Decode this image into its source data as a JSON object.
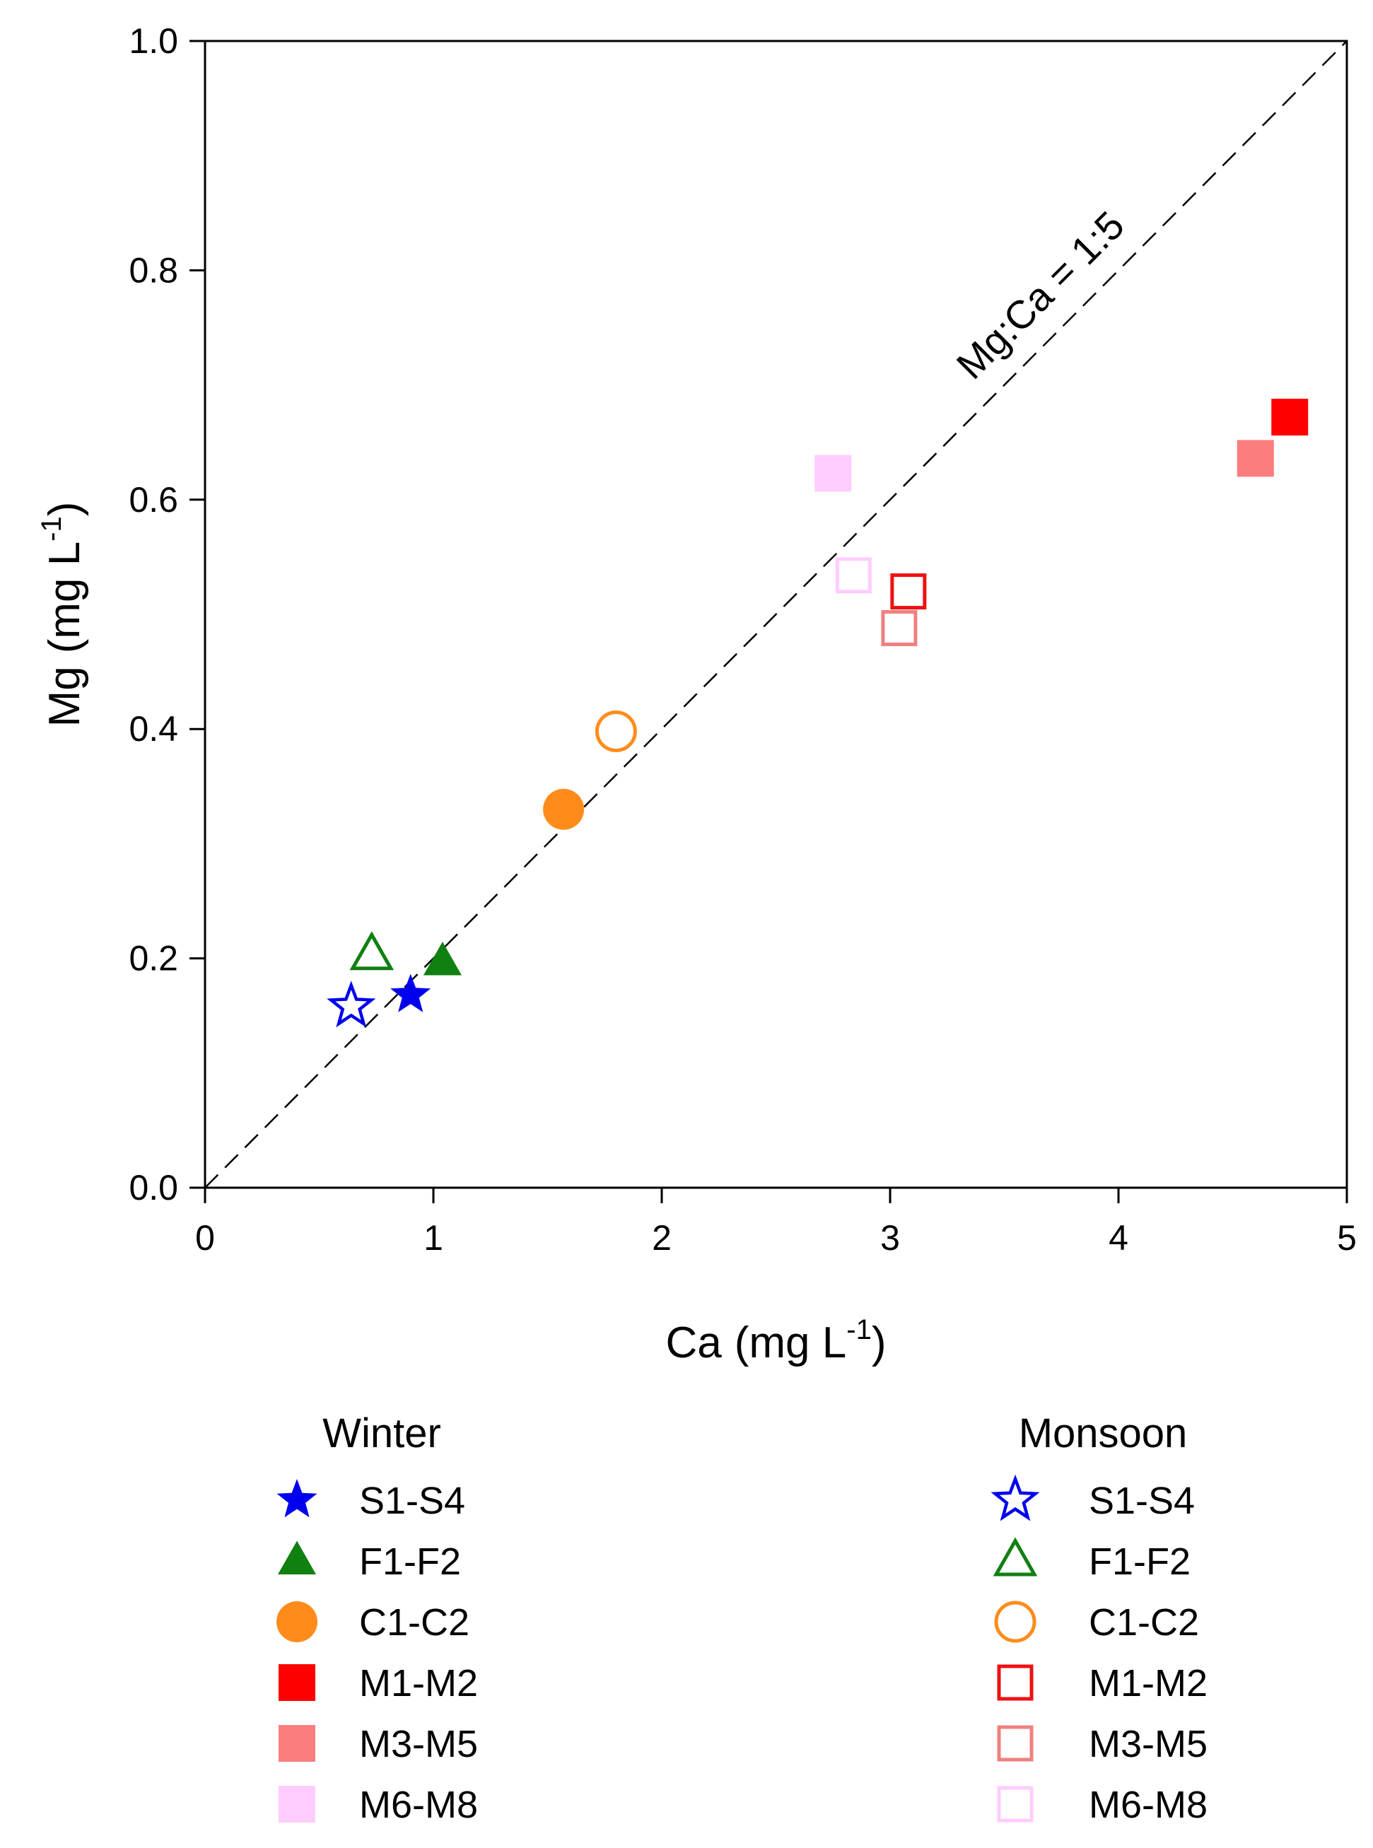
{
  "chart_data": {
    "type": "scatter",
    "title": "",
    "xlabel": {
      "base": "Ca",
      "unit": "(mg L",
      "sup": "-1",
      "close": ")"
    },
    "ylabel": {
      "base": "Mg",
      "unit": "(mg L",
      "sup": "-1",
      "close": ")"
    },
    "xlim": [
      0,
      5
    ],
    "ylim": [
      0,
      1.0
    ],
    "x_ticks": [
      0,
      1,
      2,
      3,
      4,
      5
    ],
    "x_tick_labels": [
      "0",
      "1",
      "2",
      "3",
      "4",
      "5"
    ],
    "y_ticks": [
      0,
      0.2,
      0.4,
      0.6,
      0.8,
      1.0
    ],
    "y_tick_labels": [
      "0.0",
      "0.2",
      "0.4",
      "0.6",
      "0.8",
      "1.0"
    ],
    "grid": false,
    "reference_line": {
      "label": "Mg:Ca = 1:5",
      "x": [
        0,
        5
      ],
      "y": [
        0,
        1.0
      ],
      "style": "dashed"
    },
    "legend_groups": [
      {
        "title": "Winter",
        "filled": true
      },
      {
        "title": "Monsoon",
        "filled": false
      }
    ],
    "series": [
      {
        "name": "S1-S4",
        "season": "Winter",
        "marker": "star",
        "filled": true,
        "color": "#0000ee",
        "x": 0.9,
        "y": 0.168
      },
      {
        "name": "F1-F2",
        "season": "Winter",
        "marker": "triangle",
        "filled": true,
        "color": "#108010",
        "x": 1.04,
        "y": 0.197
      },
      {
        "name": "C1-C2",
        "season": "Winter",
        "marker": "circle",
        "filled": true,
        "color": "#ff8c1a",
        "x": 1.57,
        "y": 0.33
      },
      {
        "name": "M1-M2",
        "season": "Winter",
        "marker": "square",
        "filled": true,
        "color": "#ff0000",
        "x": 4.75,
        "y": 0.672
      },
      {
        "name": "M3-M5",
        "season": "Winter",
        "marker": "square",
        "filled": true,
        "color": "#fb7d7d",
        "x": 4.6,
        "y": 0.636
      },
      {
        "name": "M6-M8",
        "season": "Winter",
        "marker": "square",
        "filled": true,
        "color": "#ffccff",
        "x": 2.75,
        "y": 0.623
      },
      {
        "name": "S1-S4",
        "season": "Monsoon",
        "marker": "star",
        "filled": false,
        "color": "#0000ee",
        "x": 0.64,
        "y": 0.158
      },
      {
        "name": "F1-F2",
        "season": "Monsoon",
        "marker": "triangle",
        "filled": false,
        "color": "#108010",
        "x": 0.73,
        "y": 0.203
      },
      {
        "name": "C1-C2",
        "season": "Monsoon",
        "marker": "circle",
        "filled": false,
        "color": "#ff8c1a",
        "x": 1.8,
        "y": 0.398
      },
      {
        "name": "M1-M2",
        "season": "Monsoon",
        "marker": "square",
        "filled": false,
        "color": "#ee1111",
        "x": 3.08,
        "y": 0.52
      },
      {
        "name": "M3-M5",
        "season": "Monsoon",
        "marker": "square",
        "filled": false,
        "color": "#f08080",
        "x": 3.04,
        "y": 0.488
      },
      {
        "name": "M6-M8",
        "season": "Monsoon",
        "marker": "square",
        "filled": false,
        "color": "#ffccff",
        "x": 2.84,
        "y": 0.534
      }
    ]
  }
}
